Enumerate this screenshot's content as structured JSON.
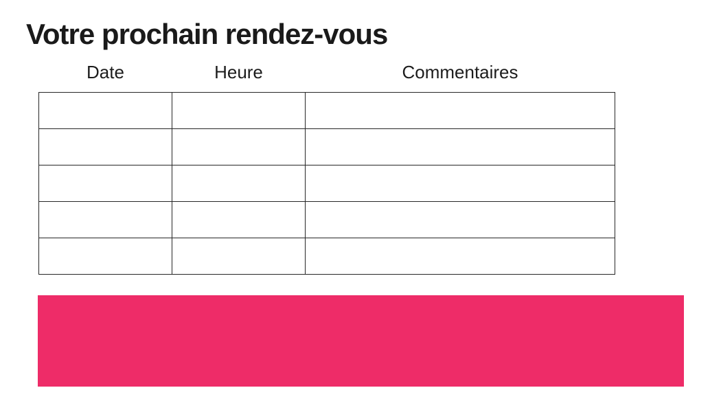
{
  "document": {
    "title": "Votre prochain rendez-vous"
  },
  "appointments_table": {
    "columns": [
      "Date",
      "Heure",
      "Commentaires"
    ],
    "rows": [
      [
        "",
        "",
        ""
      ],
      [
        "",
        "",
        ""
      ],
      [
        "",
        "",
        ""
      ],
      [
        "",
        "",
        ""
      ],
      [
        "",
        "",
        ""
      ]
    ]
  },
  "banner": {
    "color": "#EE2C68"
  },
  "colors": {
    "background": "#FFFFFF",
    "text": "#1A1A1A",
    "table_border": "#262626"
  }
}
